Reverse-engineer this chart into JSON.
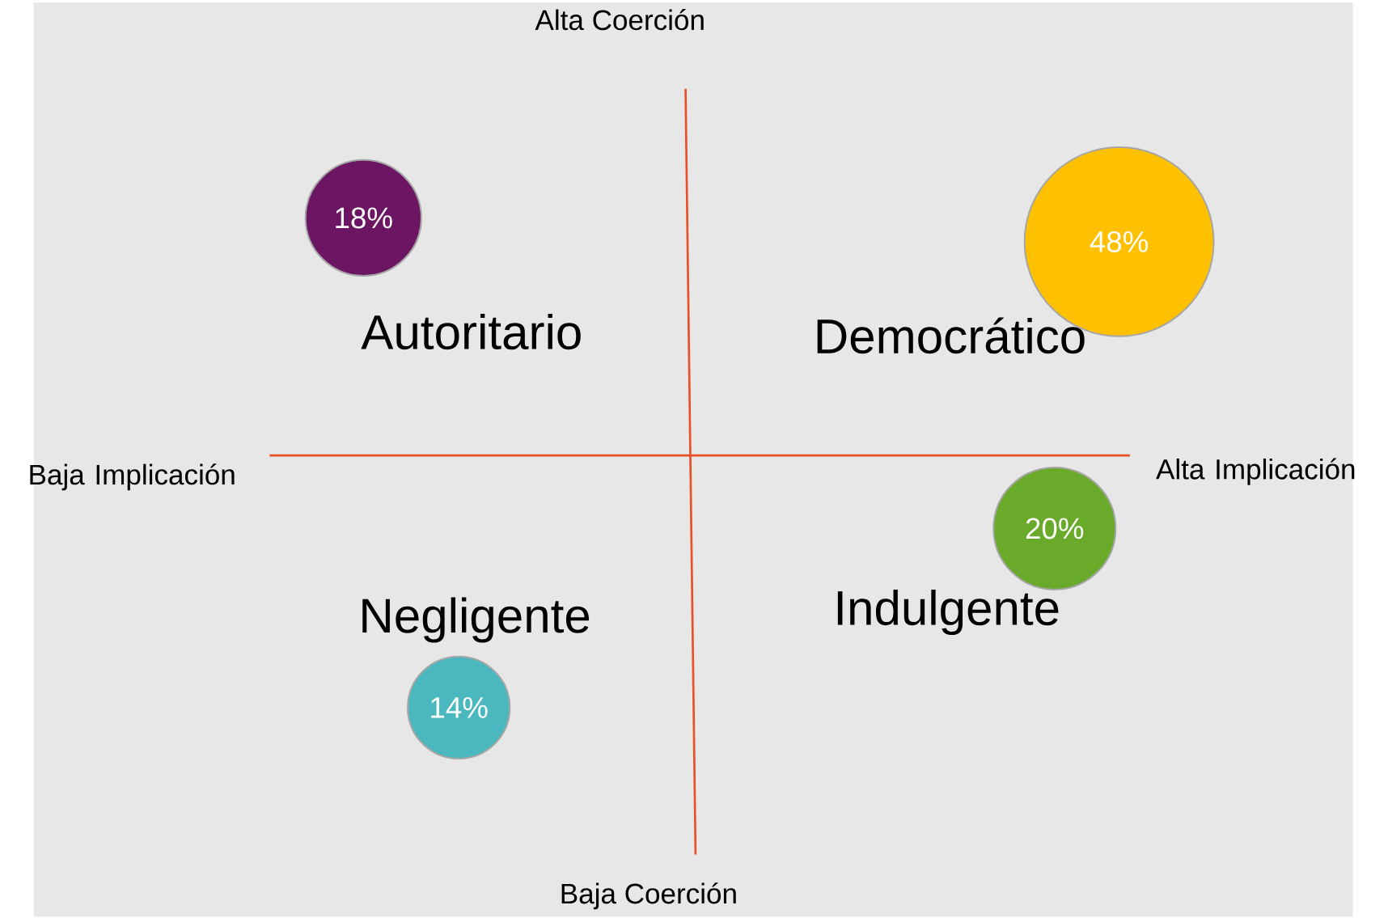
{
  "chart_data": {
    "type": "other",
    "categories": [
      "Autoritario",
      "Democrático",
      "Indulgente",
      "Negligente"
    ],
    "values": [
      18,
      48,
      20,
      14
    ],
    "value_labels": [
      "18%",
      "48%",
      "20%",
      "14%"
    ],
    "colors": [
      "#6b1563",
      "#ffc000",
      "#6aaa2a",
      "#4bb8c0"
    ],
    "annotations": [
      "Alta Coerción",
      "Baja Coerción",
      "Baja Implicación",
      "Alta Implicación"
    ]
  }
}
